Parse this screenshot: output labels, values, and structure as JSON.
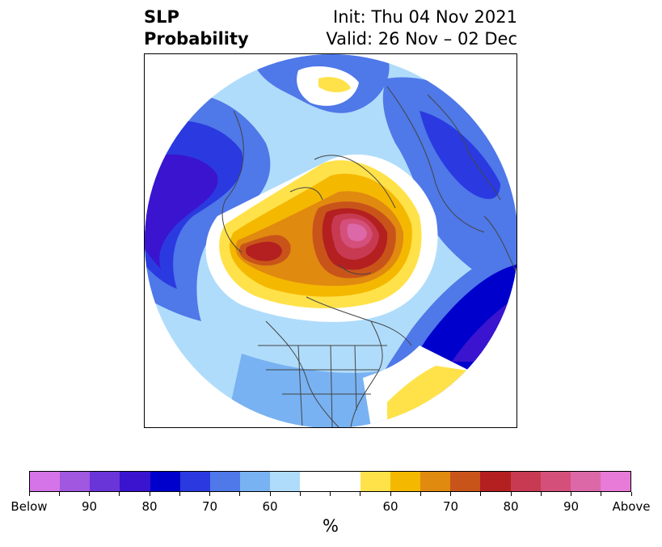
{
  "title": {
    "left_line1": "SLP",
    "left_line2": "Probability",
    "right_line1": "Init: Thu 04 Nov 2021",
    "right_line2": "Valid: 26 Nov – 02 Dec"
  },
  "map": {
    "projection": "north-polar-stereographic",
    "features": [
      "coastlines",
      "country-borders",
      "state-borders"
    ]
  },
  "colorbar": {
    "colors": [
      "#d474e8",
      "#a157e0",
      "#6a35d8",
      "#3a14cf",
      "#0000cc",
      "#2a3ae0",
      "#4f78e8",
      "#78b2f2",
      "#b0dcfb",
      "#ffffff",
      "#ffffff",
      "#ffe24a",
      "#f5b800",
      "#e08a10",
      "#c9541a",
      "#b3201f",
      "#c73a52",
      "#d4507a",
      "#dc68a8",
      "#e87ad8"
    ],
    "tick_labels": [
      "Below",
      "90",
      "80",
      "70",
      "60",
      "60",
      "70",
      "80",
      "90",
      "Above"
    ],
    "units": "%"
  }
}
